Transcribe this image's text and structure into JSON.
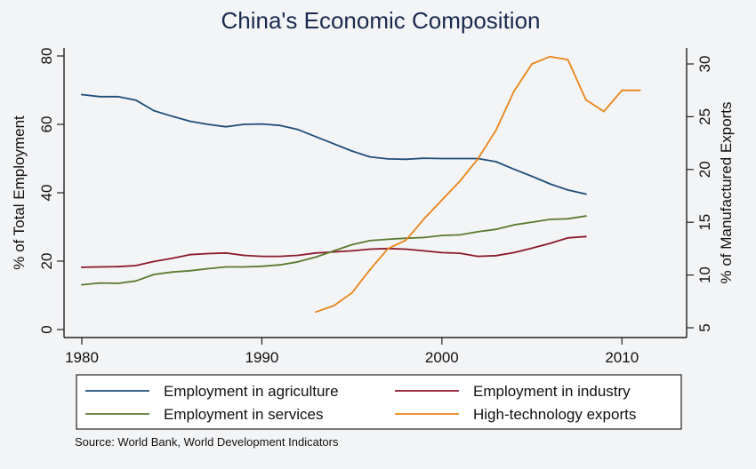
{
  "chart_data": {
    "type": "line",
    "title": "China's Economic Composition",
    "ylabel_left": "% of Total Employment",
    "ylabel_right": "% of Manufactured Exports",
    "x_ticks": [
      1980,
      1990,
      2000,
      2010
    ],
    "xlim": [
      1980,
      2013
    ],
    "ylim_left": [
      0,
      80
    ],
    "y_ticks_left": [
      0,
      20,
      40,
      60,
      80
    ],
    "ylim_right": [
      5,
      31
    ],
    "y_ticks_right": [
      5,
      10,
      15,
      20,
      25,
      30
    ],
    "grid": false,
    "legend_placement": "bottom",
    "source": "Source: World Bank, World Development Indicators",
    "series": [
      {
        "name": "Employment in agriculture",
        "axis": "left",
        "color": "#1f4e79",
        "x": [
          1980,
          1981,
          1982,
          1983,
          1984,
          1985,
          1986,
          1987,
          1988,
          1989,
          1990,
          1991,
          1992,
          1993,
          1994,
          1995,
          1996,
          1997,
          1998,
          1999,
          2000,
          2001,
          2002,
          2003,
          2004,
          2005,
          2006,
          2007,
          2008
        ],
        "values": [
          68.7,
          68.1,
          68.1,
          67.1,
          64.0,
          62.4,
          60.9,
          60.0,
          59.3,
          60.0,
          60.1,
          59.7,
          58.5,
          56.4,
          54.3,
          52.2,
          50.5,
          49.9,
          49.8,
          50.1,
          50.0,
          50.0,
          50.0,
          49.1,
          46.9,
          44.8,
          42.6,
          40.8,
          39.6
        ]
      },
      {
        "name": "Employment in industry",
        "axis": "left",
        "color": "#8b1a2b",
        "x": [
          1980,
          1981,
          1982,
          1983,
          1984,
          1985,
          1986,
          1987,
          1988,
          1989,
          1990,
          1991,
          1992,
          1993,
          1994,
          1995,
          1996,
          1997,
          1998,
          1999,
          2000,
          2001,
          2002,
          2003,
          2004,
          2005,
          2006,
          2007,
          2008
        ],
        "values": [
          18.2,
          18.3,
          18.4,
          18.7,
          19.9,
          20.8,
          21.9,
          22.2,
          22.4,
          21.7,
          21.4,
          21.4,
          21.7,
          22.4,
          22.7,
          23.0,
          23.5,
          23.7,
          23.5,
          23.0,
          22.5,
          22.3,
          21.4,
          21.6,
          22.5,
          23.8,
          25.2,
          26.8,
          27.2
        ]
      },
      {
        "name": "Employment in services",
        "axis": "left",
        "color": "#5a7a2e",
        "x": [
          1980,
          1981,
          1982,
          1983,
          1984,
          1985,
          1986,
          1987,
          1988,
          1989,
          1990,
          1991,
          1992,
          1993,
          1994,
          1995,
          1996,
          1997,
          1998,
          1999,
          2000,
          2001,
          2002,
          2003,
          2004,
          2005,
          2006,
          2007,
          2008
        ],
        "values": [
          13.1,
          13.6,
          13.5,
          14.2,
          16.1,
          16.8,
          17.2,
          17.8,
          18.3,
          18.3,
          18.5,
          18.9,
          19.8,
          21.2,
          23.0,
          24.8,
          26.0,
          26.4,
          26.7,
          26.9,
          27.5,
          27.7,
          28.6,
          29.3,
          30.6,
          31.4,
          32.2,
          32.4,
          33.2
        ]
      },
      {
        "name": "High-technology exports",
        "axis": "right",
        "color": "#e8841a",
        "x": [
          1993,
          1994,
          1995,
          1996,
          1997,
          1998,
          1999,
          2000,
          2001,
          2002,
          2003,
          2004,
          2005,
          2006,
          2007,
          2008,
          2009,
          2010,
          2011
        ],
        "values": [
          6.5,
          7.1,
          8.3,
          10.5,
          12.5,
          13.3,
          15.3,
          17.1,
          18.9,
          21.0,
          23.7,
          27.4,
          30.0,
          30.7,
          30.4,
          26.6,
          25.5,
          27.5,
          27.5
        ]
      }
    ]
  }
}
